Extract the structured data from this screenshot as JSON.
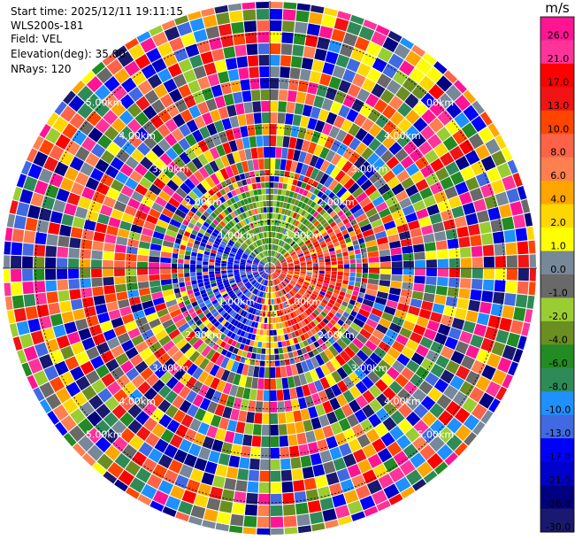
{
  "header": {
    "start_time": "Start time: 2025/12/11 19:11:15",
    "instrument": "WLS200s-181",
    "field": "Field: VEL",
    "elevation": "Elevation(deg): 35.00",
    "nrays": "NRays: 120"
  },
  "chart_data": {
    "type": "heatmap",
    "projection": "polar-ppi",
    "field": "VEL",
    "units": "m/s",
    "nrays": 120,
    "elevation_deg": 35.0,
    "range_rings_km": [
      1.0,
      2.0,
      3.0,
      4.0,
      5.0
    ],
    "ring_labels": [
      "1.00km",
      "2.00km",
      "3.00km",
      "4.00km",
      "5.00km"
    ],
    "max_range_km": 5.7,
    "near_field_pattern": "west negative (blue), east positive (red), north green/yellow, south orange",
    "colorbar": {
      "title": "m/s",
      "ticks": [
        "26.0",
        "21.0",
        "17.0",
        "13.0",
        "10.0",
        "8.0",
        "6.0",
        "4.0",
        "2.0",
        "1.0",
        "0.0",
        "-1.0",
        "-2.0",
        "-4.0",
        "-6.0",
        "-8.0",
        "-10.0",
        "-13.0",
        "-17.0",
        "-21.0",
        "-26.0",
        "-30.0"
      ],
      "colors": [
        "#ff1493",
        "#ff3399",
        "#ff0000",
        "#f01414",
        "#ff4500",
        "#ff6347",
        "#ff7f50",
        "#ffa500",
        "#ffd700",
        "#ffff00",
        "#778899",
        "#696969",
        "#9acd32",
        "#6b8e23",
        "#228b22",
        "#2e8b57",
        "#1e90ff",
        "#4169e1",
        "#0000ff",
        "#0000cd",
        "#000080",
        "#191970"
      ]
    },
    "grid": true
  }
}
